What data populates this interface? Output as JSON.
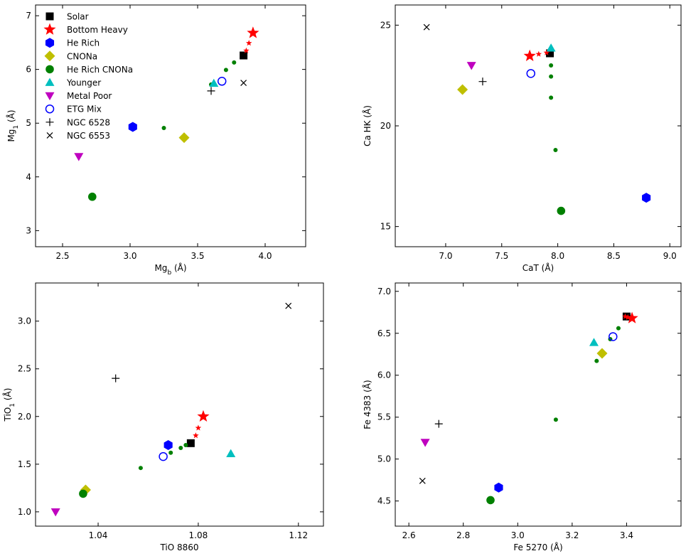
{
  "colors": {
    "solar": "#000000",
    "bottom_heavy": "#ff0000",
    "he_rich": "#0000ff",
    "cnona": "#bfbf00",
    "he_rich_cnona": "#008000",
    "younger": "#00bfbf",
    "metal_poor": "#bf00bf",
    "etg_mix": "#0000ff",
    "ngc": "#000000"
  },
  "legend": [
    {
      "key": "solar",
      "label": "Solar",
      "marker": "square"
    },
    {
      "key": "bottom_heavy",
      "label": "Bottom Heavy",
      "marker": "star"
    },
    {
      "key": "he_rich",
      "label": "He Rich",
      "marker": "hexagon"
    },
    {
      "key": "cnona",
      "label": "CNONa",
      "marker": "diamond"
    },
    {
      "key": "he_rich_cnona",
      "label": "He Rich CNONa",
      "marker": "circle"
    },
    {
      "key": "younger",
      "label": "Younger",
      "marker": "triangle-up"
    },
    {
      "key": "metal_poor",
      "label": "Metal Poor",
      "marker": "triangle-down"
    },
    {
      "key": "etg_mix",
      "label": "ETG Mix",
      "marker": "open-circle"
    },
    {
      "key": "ngc6528",
      "label": "NGC 6528",
      "marker": "plus"
    },
    {
      "key": "ngc6553",
      "label": "NGC 6553",
      "marker": "x"
    }
  ],
  "chart_data": [
    {
      "id": "mg",
      "type": "scatter",
      "xlabel": "Mg",
      "xlabel_sub": "b",
      "xlabel_unit": " (Å)",
      "ylabel": "Mg",
      "ylabel_sub": "1",
      "ylabel_unit": " (Å)",
      "xlim": [
        2.3,
        4.3
      ],
      "ylim": [
        2.7,
        7.2
      ],
      "xticks": [
        2.5,
        3.0,
        3.5,
        4.0
      ],
      "yticks": [
        3,
        4,
        5,
        6,
        7
      ],
      "xtick_labels": [
        "2.5",
        "3.0",
        "3.5",
        "4.0"
      ],
      "ytick_labels": [
        "3",
        "4",
        "5",
        "6",
        "7"
      ],
      "legend_position": "top-left",
      "points": [
        {
          "s": "solar",
          "m": "square",
          "x": 3.84,
          "y": 6.26,
          "size": "big"
        },
        {
          "s": "bottom_heavy",
          "m": "star",
          "x": 3.91,
          "y": 6.68,
          "size": "big"
        },
        {
          "s": "bottom_heavy",
          "m": "star",
          "x": 3.88,
          "y": 6.49,
          "size": "small"
        },
        {
          "s": "bottom_heavy",
          "m": "star",
          "x": 3.86,
          "y": 6.35,
          "size": "small"
        },
        {
          "s": "he_rich",
          "m": "hexagon",
          "x": 3.02,
          "y": 4.93,
          "size": "big"
        },
        {
          "s": "cnona",
          "m": "diamond",
          "x": 3.4,
          "y": 4.73,
          "size": "big"
        },
        {
          "s": "he_rich_cnona",
          "m": "circle",
          "x": 2.72,
          "y": 3.63,
          "size": "big"
        },
        {
          "s": "he_rich_cnona",
          "m": "circle",
          "x": 3.25,
          "y": 4.91,
          "size": "small"
        },
        {
          "s": "he_rich_cnona",
          "m": "circle",
          "x": 3.6,
          "y": 5.72,
          "size": "small"
        },
        {
          "s": "he_rich_cnona",
          "m": "circle",
          "x": 3.71,
          "y": 5.99,
          "size": "small"
        },
        {
          "s": "he_rich_cnona",
          "m": "circle",
          "x": 3.77,
          "y": 6.13,
          "size": "small"
        },
        {
          "s": "younger",
          "m": "triangle-up",
          "x": 3.62,
          "y": 5.74,
          "size": "big"
        },
        {
          "s": "metal_poor",
          "m": "triangle-down",
          "x": 2.62,
          "y": 4.38,
          "size": "big"
        },
        {
          "s": "etg_mix",
          "m": "open-circle",
          "x": 3.68,
          "y": 5.78,
          "size": "big"
        },
        {
          "s": "ngc6528",
          "m": "plus",
          "x": 3.6,
          "y": 5.6,
          "size": "big"
        },
        {
          "s": "ngc6553",
          "m": "x",
          "x": 3.84,
          "y": 5.75,
          "size": "big"
        }
      ]
    },
    {
      "id": "ca",
      "type": "scatter",
      "xlabel": "CaT (Å)",
      "ylabel": "Ca HK (Å)",
      "xlim": [
        6.55,
        9.1
      ],
      "ylim": [
        14.0,
        26.0
      ],
      "xticks": [
        7.0,
        7.5,
        8.0,
        8.5,
        9.0
      ],
      "yticks": [
        15,
        20,
        25
      ],
      "xtick_labels": [
        "7.0",
        "7.5",
        "8.0",
        "8.5",
        "9.0"
      ],
      "ytick_labels": [
        "15",
        "20",
        "25"
      ],
      "points": [
        {
          "s": "solar",
          "m": "square",
          "x": 7.93,
          "y": 23.6,
          "size": "big"
        },
        {
          "s": "bottom_heavy",
          "m": "star",
          "x": 7.75,
          "y": 23.47,
          "size": "big"
        },
        {
          "s": "bottom_heavy",
          "m": "star",
          "x": 7.83,
          "y": 23.56,
          "size": "small"
        },
        {
          "s": "bottom_heavy",
          "m": "star",
          "x": 7.9,
          "y": 23.63,
          "size": "small"
        },
        {
          "s": "he_rich",
          "m": "hexagon",
          "x": 8.79,
          "y": 16.43,
          "size": "big"
        },
        {
          "s": "cnona",
          "m": "diamond",
          "x": 7.15,
          "y": 21.8,
          "size": "big"
        },
        {
          "s": "he_rich_cnona",
          "m": "circle",
          "x": 8.03,
          "y": 15.78,
          "size": "big"
        },
        {
          "s": "he_rich_cnona",
          "m": "circle",
          "x": 7.98,
          "y": 18.8,
          "size": "small"
        },
        {
          "s": "he_rich_cnona",
          "m": "circle",
          "x": 7.94,
          "y": 21.4,
          "size": "small"
        },
        {
          "s": "he_rich_cnona",
          "m": "circle",
          "x": 7.94,
          "y": 22.45,
          "size": "small"
        },
        {
          "s": "he_rich_cnona",
          "m": "circle",
          "x": 7.94,
          "y": 23.0,
          "size": "small"
        },
        {
          "s": "younger",
          "m": "triangle-up",
          "x": 7.94,
          "y": 23.86,
          "size": "big"
        },
        {
          "s": "metal_poor",
          "m": "triangle-down",
          "x": 7.23,
          "y": 23.0,
          "size": "big"
        },
        {
          "s": "etg_mix",
          "m": "open-circle",
          "x": 7.76,
          "y": 22.6,
          "size": "big"
        },
        {
          "s": "ngc6528",
          "m": "plus",
          "x": 7.33,
          "y": 22.2,
          "size": "big"
        },
        {
          "s": "ngc6553",
          "m": "x",
          "x": 6.83,
          "y": 24.9,
          "size": "big"
        }
      ]
    },
    {
      "id": "tio",
      "type": "scatter",
      "xlabel": "TiO 8860",
      "ylabel": "TiO",
      "ylabel_sub": "1",
      "ylabel_unit": " (Å)",
      "xlim": [
        1.015,
        1.13
      ],
      "ylim": [
        0.85,
        3.4
      ],
      "xticks": [
        1.04,
        1.08,
        1.12
      ],
      "yticks": [
        1.0,
        1.5,
        2.0,
        2.5,
        3.0
      ],
      "xtick_labels": [
        "1.04",
        "1.08",
        "1.12"
      ],
      "ytick_labels": [
        "1.0",
        "1.5",
        "2.0",
        "2.5",
        "3.0"
      ],
      "points": [
        {
          "s": "solar",
          "m": "square",
          "x": 1.077,
          "y": 1.72,
          "size": "big"
        },
        {
          "s": "bottom_heavy",
          "m": "star",
          "x": 1.082,
          "y": 2.0,
          "size": "big"
        },
        {
          "s": "bottom_heavy",
          "m": "star",
          "x": 1.08,
          "y": 1.88,
          "size": "small"
        },
        {
          "s": "bottom_heavy",
          "m": "star",
          "x": 1.079,
          "y": 1.8,
          "size": "small"
        },
        {
          "s": "he_rich",
          "m": "hexagon",
          "x": 1.068,
          "y": 1.7,
          "size": "big"
        },
        {
          "s": "cnona",
          "m": "diamond",
          "x": 1.035,
          "y": 1.23,
          "size": "big"
        },
        {
          "s": "he_rich_cnona",
          "m": "circle",
          "x": 1.034,
          "y": 1.19,
          "size": "big"
        },
        {
          "s": "he_rich_cnona",
          "m": "circle",
          "x": 1.057,
          "y": 1.46,
          "size": "small"
        },
        {
          "s": "he_rich_cnona",
          "m": "circle",
          "x": 1.069,
          "y": 1.62,
          "size": "small"
        },
        {
          "s": "he_rich_cnona",
          "m": "circle",
          "x": 1.073,
          "y": 1.67,
          "size": "small"
        },
        {
          "s": "he_rich_cnona",
          "m": "circle",
          "x": 1.075,
          "y": 1.7,
          "size": "small"
        },
        {
          "s": "younger",
          "m": "triangle-up",
          "x": 1.093,
          "y": 1.61,
          "size": "big"
        },
        {
          "s": "metal_poor",
          "m": "triangle-down",
          "x": 1.023,
          "y": 1.0,
          "size": "big"
        },
        {
          "s": "etg_mix",
          "m": "open-circle",
          "x": 1.066,
          "y": 1.58,
          "size": "big"
        },
        {
          "s": "ngc6528",
          "m": "plus",
          "x": 1.047,
          "y": 2.4,
          "size": "big"
        },
        {
          "s": "ngc6553",
          "m": "x",
          "x": 1.116,
          "y": 3.16,
          "size": "big"
        }
      ]
    },
    {
      "id": "fe",
      "type": "scatter",
      "xlabel": "Fe 5270 (Å)",
      "ylabel": "Fe 4383 (Å)",
      "xlim": [
        2.55,
        3.6
      ],
      "ylim": [
        4.2,
        7.1
      ],
      "xticks": [
        2.6,
        2.8,
        3.0,
        3.2,
        3.4
      ],
      "yticks": [
        4.5,
        5.0,
        5.5,
        6.0,
        6.5,
        7.0
      ],
      "xtick_labels": [
        "2.6",
        "2.8",
        "3.0",
        "3.2",
        "3.4"
      ],
      "ytick_labels": [
        "4.5",
        "5.0",
        "5.5",
        "6.0",
        "6.5",
        "7.0"
      ],
      "points": [
        {
          "s": "solar",
          "m": "square",
          "x": 3.4,
          "y": 6.7,
          "size": "big"
        },
        {
          "s": "bottom_heavy",
          "m": "star",
          "x": 3.42,
          "y": 6.68,
          "size": "big"
        },
        {
          "s": "bottom_heavy",
          "m": "star",
          "x": 3.405,
          "y": 6.69,
          "size": "small"
        },
        {
          "s": "bottom_heavy",
          "m": "star",
          "x": 3.395,
          "y": 6.7,
          "size": "small"
        },
        {
          "s": "he_rich",
          "m": "hexagon",
          "x": 2.93,
          "y": 4.66,
          "size": "big"
        },
        {
          "s": "cnona",
          "m": "diamond",
          "x": 3.31,
          "y": 6.26,
          "size": "big"
        },
        {
          "s": "he_rich_cnona",
          "m": "circle",
          "x": 2.9,
          "y": 4.51,
          "size": "big"
        },
        {
          "s": "he_rich_cnona",
          "m": "circle",
          "x": 3.14,
          "y": 5.47,
          "size": "small"
        },
        {
          "s": "he_rich_cnona",
          "m": "circle",
          "x": 3.29,
          "y": 6.17,
          "size": "small"
        },
        {
          "s": "he_rich_cnona",
          "m": "circle",
          "x": 3.34,
          "y": 6.43,
          "size": "small"
        },
        {
          "s": "he_rich_cnona",
          "m": "circle",
          "x": 3.37,
          "y": 6.56,
          "size": "small"
        },
        {
          "s": "younger",
          "m": "triangle-up",
          "x": 3.28,
          "y": 6.39,
          "size": "big"
        },
        {
          "s": "metal_poor",
          "m": "triangle-down",
          "x": 2.66,
          "y": 5.2,
          "size": "big"
        },
        {
          "s": "etg_mix",
          "m": "open-circle",
          "x": 3.35,
          "y": 6.46,
          "size": "big"
        },
        {
          "s": "ngc6528",
          "m": "plus",
          "x": 2.71,
          "y": 5.42,
          "size": "big"
        },
        {
          "s": "ngc6553",
          "m": "x",
          "x": 2.65,
          "y": 4.74,
          "size": "big"
        }
      ]
    }
  ]
}
